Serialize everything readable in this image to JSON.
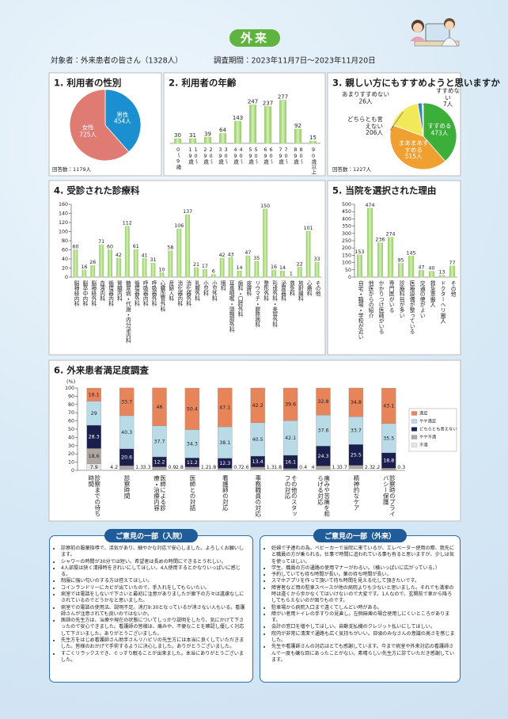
{
  "header": {
    "title": "外来",
    "target": "対象者：外来患者の皆さん（1328人）",
    "period": "調査期間：2023年11月7日～2023年11月20日"
  },
  "chart_data": [
    {
      "type": "pie",
      "title": "1. 利用者の性別",
      "categories": [
        "男性",
        "女性"
      ],
      "values": [
        454,
        725
      ],
      "value_labels": [
        "454人",
        "725人"
      ],
      "colors": [
        "#1b8fd0",
        "#e07b73"
      ],
      "note": "回答数：1179人"
    },
    {
      "type": "bar",
      "title": "2. 利用者の年齢",
      "categories": [
        "0～9歳",
        "10～19歳",
        "20～29歳",
        "30～39歳",
        "40～49歳",
        "50～59歳",
        "60～69歳",
        "70～79歳",
        "80～89歳",
        "90歳以上"
      ],
      "values": [
        30,
        31,
        39,
        64,
        143,
        247,
        237,
        277,
        92,
        15
      ],
      "color": "#a9d87c"
    },
    {
      "type": "pie",
      "title": "3. 親しい方にもすすめようと思いますか",
      "categories": [
        "すすめる",
        "まあまあすすめる",
        "どちらとも言えない",
        "あまりすすめない",
        "すすめない"
      ],
      "values": [
        473,
        515,
        206,
        26,
        7
      ],
      "value_labels": [
        "473人",
        "515人",
        "206人",
        "26人",
        "7人"
      ],
      "colors": [
        "#3cae3a",
        "#f0a030",
        "#f1e85a",
        "#2f84c8",
        "#f3f3e0"
      ],
      "note": "回答数：1227人"
    },
    {
      "type": "bar",
      "title": "4. 受診された診療科",
      "categories": [
        "脳神経内科",
        "脳卒中内科",
        "脳神経外科",
        "血液内科",
        "循環器内科",
        "腎臓内科",
        "糖尿病・代謝・内分泌内科",
        "循環器外科",
        "呼吸器内科",
        "呼吸器外科",
        "心臓血管外科",
        "産婦人科",
        "消化器内科",
        "消化器外科",
        "乳腺外科",
        "小児科",
        "小児外科",
        "眼科",
        "耳鼻咽喉・頭頸部外科",
        "歯科・口腔外科",
        "皮膚科",
        "リウマチ・膠原病科",
        "整形外科",
        "形成外科・美容外科",
        "泌尿器科",
        "救急科",
        "放射線科",
        "心療科",
        "その他"
      ],
      "values": [
        60,
        16,
        26,
        71,
        60,
        42,
        112,
        61,
        41,
        31,
        10,
        58,
        106,
        137,
        21,
        17,
        6,
        42,
        43,
        14,
        47,
        35,
        150,
        16,
        14,
        1,
        22,
        101,
        33
      ],
      "color": "#a9d87c",
      "ylim": [
        0,
        160
      ],
      "yticks": [
        0,
        20,
        40,
        60,
        80,
        100,
        120,
        140,
        160
      ]
    },
    {
      "type": "bar",
      "title": "5. 当院を選択された理由",
      "categories": [
        "自宅・職場・学校が近い",
        "他医からの紹介",
        "かかりつけ医師がいる",
        "専門医がいる",
        "診療科目が多い",
        "医療設備が整っている",
        "交通の便がよい",
        "救急車搬入",
        "ドクターヘリ搬入",
        "その他"
      ],
      "values": [
        153,
        474,
        236,
        274,
        95,
        145,
        47,
        40,
        13,
        77
      ],
      "color": "#a9d87c",
      "ylim": [
        0,
        500
      ],
      "yticks": [
        0,
        50,
        100,
        150,
        200,
        250,
        300,
        350,
        400,
        450,
        500
      ]
    },
    {
      "type": "stacked_bar",
      "title": "6. 外来患者満足度調査",
      "y_label": "(%)",
      "categories": [
        "診察までの待ち時間",
        "診察時間",
        "医師による診療・治療内容",
        "医師との対話",
        "看護師の対応",
        "事務職員の対応",
        "その他のスタッフの対応",
        "痛みや苦痛を和らげる対応",
        "精神的なケア",
        "診察時のプライバシー保護"
      ],
      "series": [
        {
          "name": "満足",
          "color": "#e8845a",
          "values": [
            16.1,
            33.7,
            46.0,
            50.4,
            47.1,
            42.2,
            39.6,
            32.8,
            34.8,
            43.1
          ]
        },
        {
          "name": "やや満足",
          "color": "#b9dbe8",
          "values": [
            29.0,
            40.3,
            37.7,
            34.3,
            38.1,
            40.5,
            42.1,
            37.6,
            33.7,
            35.5
          ]
        },
        {
          "name": "どちらとも言えない",
          "color": "#1a1f4d",
          "values": [
            28.3,
            20.6,
            12.2,
            11.2,
            12.3,
            13.4,
            16.1,
            24.3,
            25.5,
            18.8
          ]
        },
        {
          "name": "やや不満",
          "color": "#b0a8a0",
          "values": [
            18.6,
            4.2,
            3.3,
            2.8,
            1.8,
            2.6,
            1.8,
            4.0,
            3.7,
            2.2
          ]
        },
        {
          "name": "不満",
          "color": "#e6e6e6",
          "values": [
            7.9,
            1.3,
            0.9,
            1.2,
            0.7,
            1.3,
            0.4,
            1.3,
            2.3,
            0.3
          ]
        }
      ],
      "ylim": [
        0,
        100
      ],
      "yticks": [
        0,
        10,
        20,
        30,
        40,
        50,
        60,
        70,
        80,
        90,
        100
      ],
      "legend": "right"
    }
  ],
  "comments": [
    {
      "title": "ご意見の一部（入院）",
      "items": [
        "診察前の服薬指導で、活気があり、細やかな対応で安心しました。よろしくお願いします。",
        "シャワーの時間が30分では短い。希望者は長めの時間にできるとうれしい。",
        "4人部屋は狭く清掃時をきれいにしてほしい。4人使用するとかなりいっぱいに感じる。",
        "制服に強い匂いのする方は控えてほしい。",
        "コインランドリーにカビが出ていたので、手入れをしてもらいたい。",
        "病室では電話をしないで下さいと最初に注意がありましたが廊下の方々は遠慮なしにされているのでどうかなと思いました。",
        "病室での電話の使用法、説明不足。消灯9:30となっているが消さない人もいる。看護師さんが注意されても良いのではないか。",
        "医師の先生方は、治療や現在の状態についてしっかり説明をしたり、気にかけて下さったので安心できました。看護師の皆様は、痛みや、不便なことを確認し優しく対応して下さいました。ありがとうございました。",
        "先生方をはじめ看護師さん助手さんリハビリの先生方には本当に良くしていただきました。皆様のおかげで手術するように決心しました。ありがとうございました。",
        "すごくリラックスでき、ぐっすり眠ることが出来ました。本当にありがとうございました。"
      ]
    },
    {
      "title": "ご意見の一部（外来）",
      "items": [
        "妊婦で子連れの為、ベビーカーで当院に来ているが、エレベーター使用の際、我先にと職員の方が乗られる。仕事で時間に追われている事も有ると思いますが、少しは気を使ってほしい。",
        "学生、職員の方の通路の使用マナーがわるい。（横いっぱいに広がっている。）",
        "予約していても待ち時間が長い。薬の待ち時間が長い。",
        "スマホアプリを作って頂いて待ち時間を見える化して頂きたいです。",
        "障害者など用の駐車スペースが他の病院よりも少ないと思いました。それでも満車の時は遠くから歩かなくてはいけないので大変です。1人なので、玄関前で車から降ろしてもらえないのが困りものです。",
        "駐車場から病院入口まで遠くてしんどい時がある。",
        "障がい者用トイレの手すりの見直し。左側麻痺の場合使用しにくいところがあります。",
        "会計の窓口を増やしてほしい。自動支払機のクレジット払いにしてほしい。",
        "院内が非常に清潔で通路も広く気持ちがいい。日頃のみなさんの意識の高さを感じました。",
        "先生や看護師さんの対応はとても感謝しています。今まで病室や外来対応の看護師さんで一度も嫌な目にあったことがない。素晴らしい先生方に診ていただき感謝しています。"
      ]
    }
  ]
}
